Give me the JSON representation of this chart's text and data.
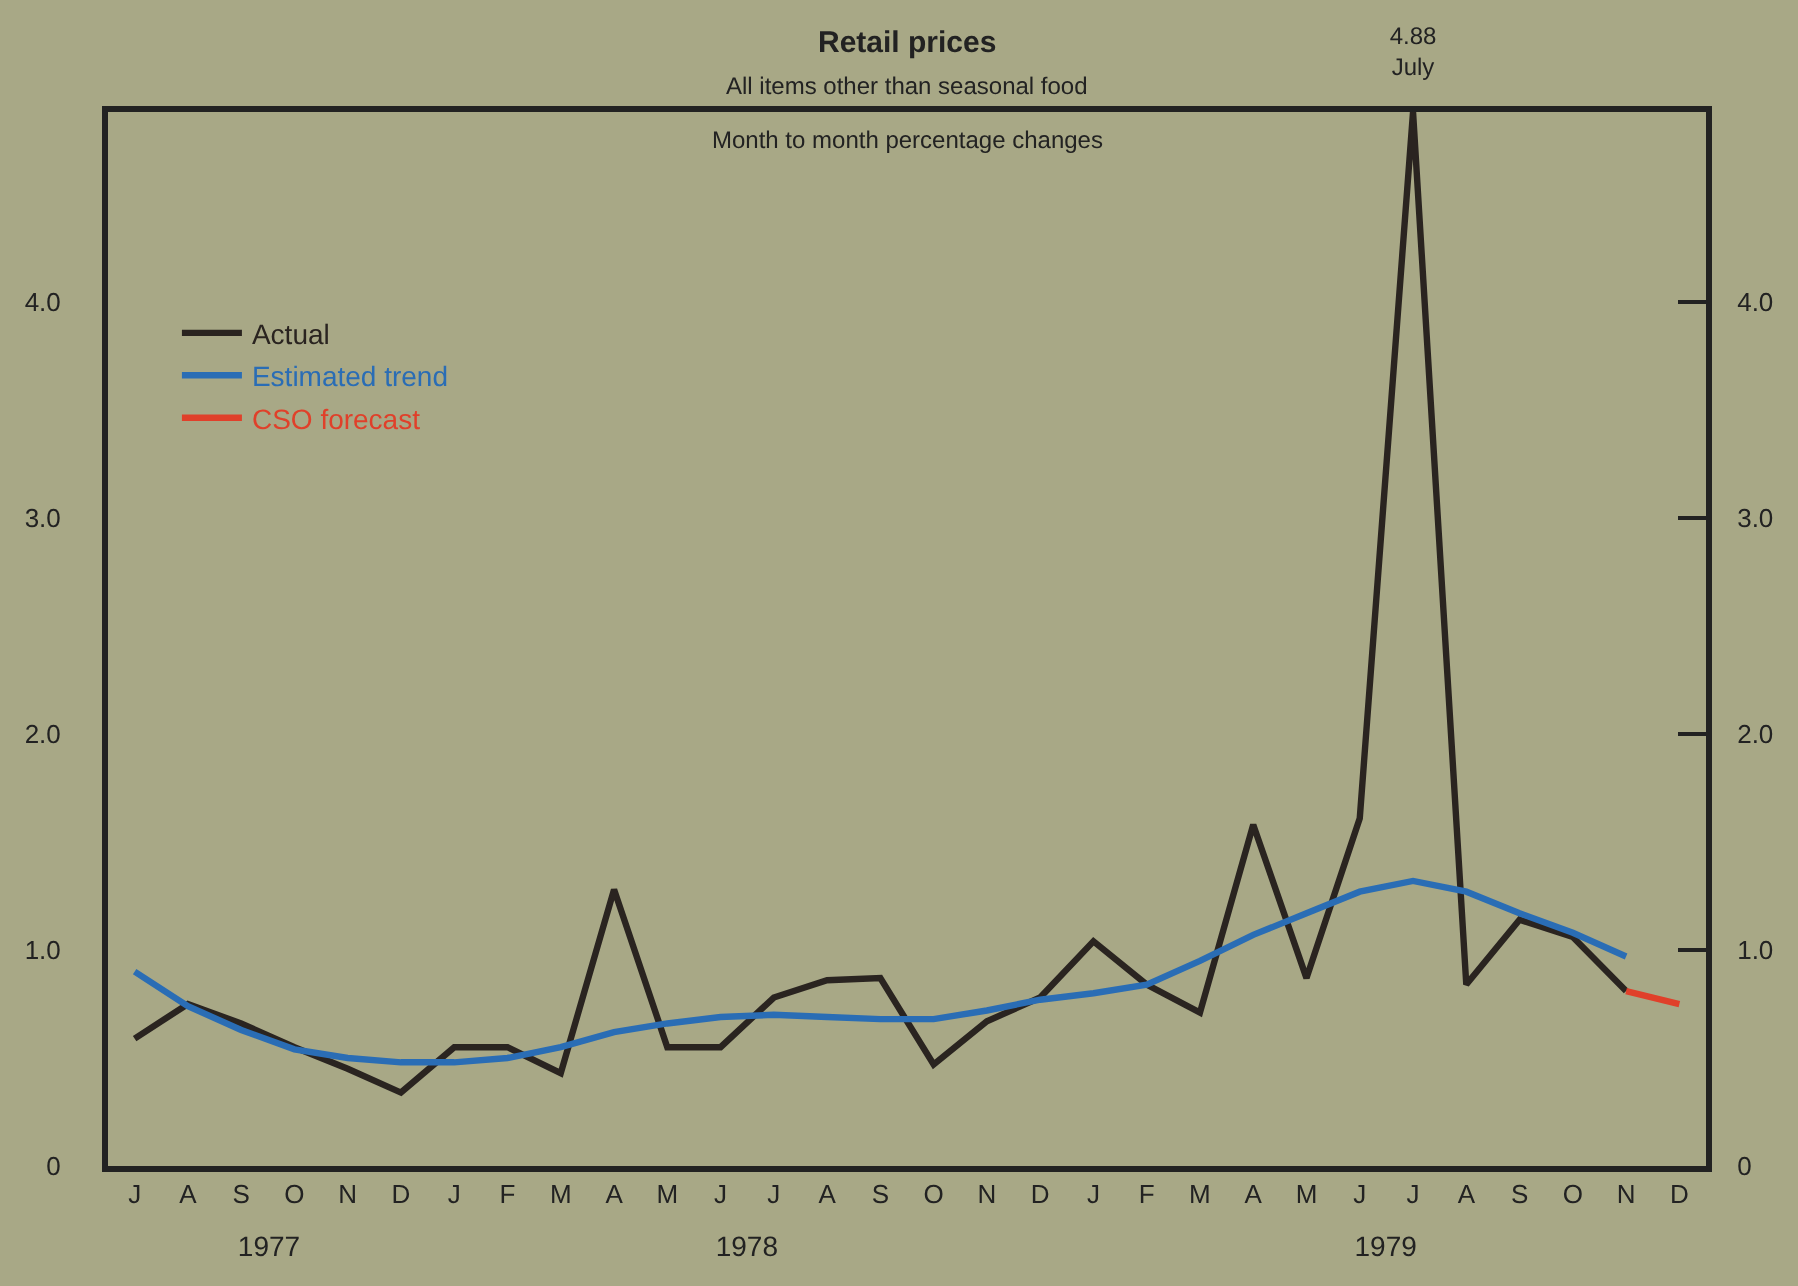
{
  "chart_data": {
    "type": "line",
    "title": "Retail prices",
    "subtitle": "All items other than seasonal food",
    "annotations": [
      "Month to month percentage changes"
    ],
    "categories": [
      "J",
      "A",
      "S",
      "O",
      "N",
      "D",
      "J",
      "F",
      "M",
      "A",
      "M",
      "J",
      "J",
      "A",
      "S",
      "O",
      "N",
      "D",
      "J",
      "F",
      "M",
      "A",
      "M",
      "J",
      "J",
      "A",
      "S",
      "O",
      "N",
      "D"
    ],
    "x2lim": [
      "1977-07-01",
      "1979-12-31"
    ],
    "x2ticks": [
      {
        "value": "1977-10-01",
        "label": "1977"
      },
      {
        "value": "1978-07-01",
        "label": "1978"
      },
      {
        "value": "1979-07-01",
        "label": "1979"
      }
    ],
    "ylim": [
      0,
      4.88
    ],
    "yticks": [
      0,
      {
        "value": 1,
        "label": "1.0"
      },
      {
        "value": 2,
        "label": "2.0"
      },
      {
        "value": 3,
        "label": "3.0"
      },
      {
        "value": 4,
        "label": "4.0"
      }
    ],
    "y2lim": [
      0,
      4.88
    ],
    "y2ticks": [
      0,
      {
        "value": 1,
        "label": "1.0"
      },
      {
        "value": 2,
        "label": "2.0"
      },
      {
        "value": 3,
        "label": "3.0"
      },
      {
        "value": 4,
        "label": "4.0"
      }
    ],
    "grid": false,
    "legend": "top left",
    "marker": "none",
    "line_style": "solid",
    "series": [
      {
        "name": "Actual",
        "color": "#2a2420",
        "values": [
          0.59,
          0.75,
          0.66,
          0.55,
          0.45,
          0.34,
          0.55,
          0.55,
          0.43,
          1.28,
          0.55,
          0.55,
          0.78,
          0.86,
          0.87,
          0.47,
          0.67,
          0.78,
          1.04,
          0.84,
          0.71,
          1.58,
          0.87,
          1.61,
          4.88,
          0.84,
          1.14,
          1.06,
          0.81,
          null
        ],
        "value_labels": [
          null,
          null,
          null,
          null,
          null,
          null,
          null,
          null,
          null,
          null,
          null,
          null,
          null,
          null,
          null,
          null,
          null,
          null,
          null,
          null,
          null,
          null,
          null,
          null,
          "4.88\nJuly",
          null,
          null,
          null,
          null,
          null
        ]
      },
      {
        "name": "Estimated trend",
        "color": "#2a6db5",
        "values": [
          0.9,
          0.74,
          0.63,
          0.54,
          0.5,
          0.48,
          0.48,
          0.5,
          0.55,
          0.62,
          0.66,
          0.69,
          0.7,
          0.69,
          0.68,
          0.68,
          0.72,
          0.77,
          0.8,
          0.84,
          0.95,
          1.07,
          1.17,
          1.27,
          1.32,
          1.27,
          1.17,
          1.08,
          0.97,
          null
        ]
      },
      {
        "name": "CSO forecast",
        "color": "#e0402a",
        "values": [
          null,
          null,
          null,
          null,
          null,
          null,
          null,
          null,
          null,
          null,
          null,
          null,
          null,
          null,
          null,
          null,
          null,
          null,
          null,
          null,
          null,
          null,
          null,
          null,
          null,
          null,
          null,
          null,
          0.81,
          0.75
        ]
      }
    ]
  }
}
